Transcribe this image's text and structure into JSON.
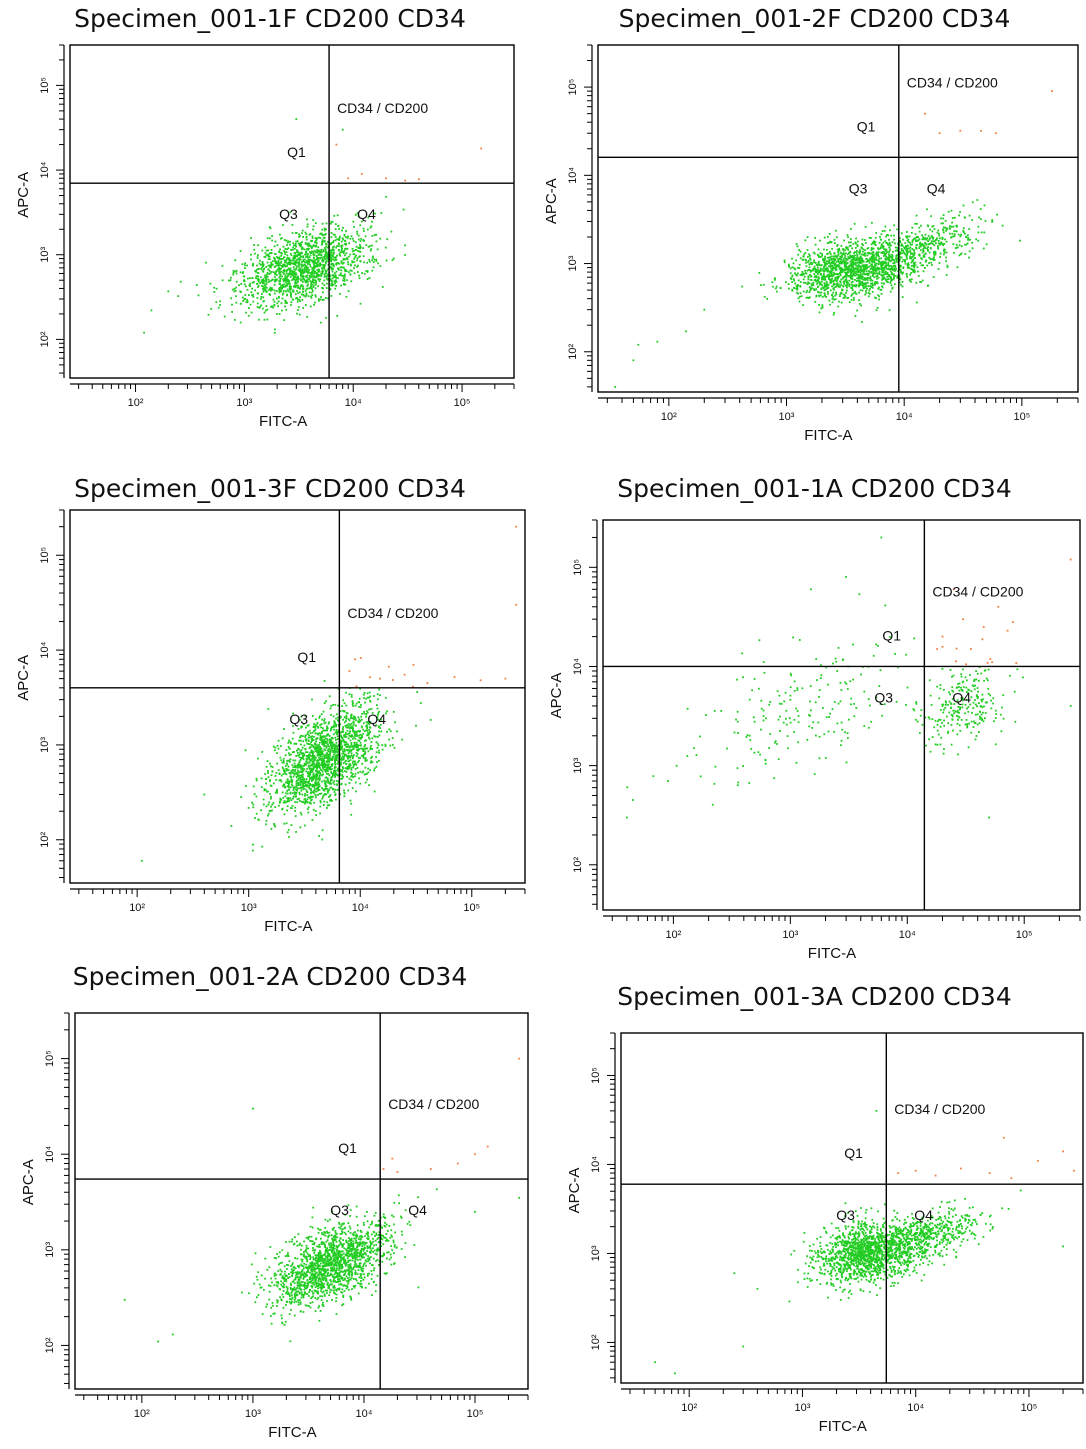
{
  "colors": {
    "population": "#22cc22",
    "double_positive": "#f08040",
    "gate": "#000000",
    "frame": "#000000"
  },
  "chart_data": [
    {
      "type": "scatter",
      "title": "Specimen_001-1F  CD200 CD34",
      "xlabel": "FITC-A",
      "ylabel": "APC-A",
      "xscale": "log",
      "yscale": "log",
      "x_ticks": [
        "10²",
        "10³",
        "10⁴",
        "10⁵"
      ],
      "y_ticks": [
        "10²",
        "10³",
        "10⁴",
        "10⁵"
      ],
      "xlim": [
        25,
        300000
      ],
      "ylim": [
        35,
        300000
      ],
      "gate": {
        "x": 6000,
        "y": 7000
      },
      "quadrant_labels": {
        "Q1": "Q1",
        "Q2": "CD34 / CD200",
        "Q3": "Q3",
        "Q4": "Q4"
      },
      "clusters": [
        {
          "cx": 3500,
          "cy": 700,
          "sx": 0.3,
          "sy": 0.24,
          "rho": 0.45,
          "n": 1500
        }
      ],
      "outliers": [
        [
          120,
          120
        ],
        [
          140,
          220
        ],
        [
          200,
          370
        ],
        [
          260,
          480
        ],
        [
          8000,
          30000
        ],
        [
          3000,
          40000
        ]
      ],
      "orange_points": [
        [
          9000,
          8000
        ],
        [
          12000,
          9000
        ],
        [
          20000,
          8000
        ],
        [
          40000,
          7800
        ],
        [
          7000,
          20000
        ],
        [
          150000,
          18000
        ],
        [
          30000,
          7500
        ]
      ]
    },
    {
      "type": "scatter",
      "title": "Specimen_001-2F  CD200 CD34",
      "xlabel": "FITC-A",
      "ylabel": "APC-A",
      "xscale": "log",
      "yscale": "log",
      "x_ticks": [
        "10²",
        "10³",
        "10⁴",
        "10⁵"
      ],
      "y_ticks": [
        "10²",
        "10³",
        "10⁴",
        "10⁵"
      ],
      "xlim": [
        25,
        300000
      ],
      "ylim": [
        35,
        300000
      ],
      "gate": {
        "x": 9000,
        "y": 16000
      },
      "quadrant_labels": {
        "Q1": "Q1",
        "Q2": "CD34 / CD200",
        "Q3": "Q3",
        "Q4": "Q4"
      },
      "clusters": [
        {
          "cx": 3500,
          "cy": 850,
          "sx": 0.26,
          "sy": 0.17,
          "rho": 0.25,
          "n": 1400
        },
        {
          "cx": 14000,
          "cy": 1500,
          "sx": 0.28,
          "sy": 0.2,
          "rho": 0.6,
          "n": 500
        }
      ],
      "outliers": [
        [
          35,
          40
        ],
        [
          50,
          80
        ],
        [
          80,
          130
        ],
        [
          140,
          170
        ],
        [
          200,
          300
        ],
        [
          420,
          550
        ],
        [
          55,
          120
        ]
      ],
      "orange_points": [
        [
          20000,
          30000
        ],
        [
          30000,
          32000
        ],
        [
          45000,
          32000
        ],
        [
          60000,
          30000
        ],
        [
          180000,
          90000
        ],
        [
          15000,
          50000
        ]
      ]
    },
    {
      "type": "scatter",
      "title": "Specimen_001-3F  CD200 CD34",
      "xlabel": "FITC-A",
      "ylabel": "APC-A",
      "xscale": "log",
      "yscale": "log",
      "x_ticks": [
        "10²",
        "10³",
        "10⁴",
        "10⁵"
      ],
      "y_ticks": [
        "10²",
        "10³",
        "10⁴",
        "10⁵"
      ],
      "xlim": [
        25,
        300000
      ],
      "ylim": [
        35,
        300000
      ],
      "gate": {
        "x": 6500,
        "y": 4000
      },
      "quadrant_labels": {
        "Q1": "Q1",
        "Q2": "CD34 / CD200",
        "Q3": "Q3",
        "Q4": "Q4"
      },
      "clusters": [
        {
          "cx": 4800,
          "cy": 700,
          "sx": 0.25,
          "sy": 0.28,
          "rho": 0.55,
          "n": 1800
        }
      ],
      "outliers": [
        [
          110,
          60
        ],
        [
          700,
          140
        ],
        [
          1100,
          220
        ],
        [
          400,
          300
        ],
        [
          1500,
          2400
        ]
      ],
      "orange_points": [
        [
          8000,
          6000
        ],
        [
          15000,
          5000
        ],
        [
          25000,
          5500
        ],
        [
          40000,
          4500
        ],
        [
          70000,
          5200
        ],
        [
          120000,
          4800
        ],
        [
          200000,
          5000
        ],
        [
          250000,
          30000
        ],
        [
          9000,
          8000
        ],
        [
          30000,
          7000
        ],
        [
          250000,
          200000
        ]
      ]
    },
    {
      "type": "scatter",
      "title": "Specimen_001-1A  CD200 CD34",
      "xlabel": "FITC-A",
      "ylabel": "APC-A",
      "xscale": "log",
      "yscale": "log",
      "x_ticks": [
        "10²",
        "10³",
        "10⁴",
        "10⁵"
      ],
      "y_ticks": [
        "10²",
        "10³",
        "10⁴",
        "10⁵"
      ],
      "xlim": [
        25,
        300000
      ],
      "ylim": [
        35,
        300000
      ],
      "gate": {
        "x": 14000,
        "y": 10000
      },
      "quadrant_labels": {
        "Q1": "Q1",
        "Q2": "CD34 / CD200",
        "Q3": "Q3",
        "Q4": "Q4"
      },
      "clusters": [
        {
          "cx": 30000,
          "cy": 4000,
          "sx": 0.18,
          "sy": 0.2,
          "rho": 0.3,
          "n": 250
        },
        {
          "cx": 1200,
          "cy": 4000,
          "sx": 0.5,
          "sy": 0.4,
          "rho": 0.55,
          "n": 200
        }
      ],
      "outliers": [
        [
          40,
          300
        ],
        [
          45,
          450
        ],
        [
          90,
          700
        ],
        [
          150,
          1500
        ],
        [
          6000,
          200000
        ],
        [
          3000,
          80000
        ],
        [
          1500,
          60000
        ],
        [
          250000,
          4000
        ],
        [
          50000,
          300
        ]
      ],
      "orange_points": [
        [
          20000,
          20000
        ],
        [
          30000,
          30000
        ],
        [
          45000,
          25000
        ],
        [
          60000,
          40000
        ],
        [
          25000,
          60000
        ],
        [
          80000,
          28000
        ],
        [
          250000,
          120000
        ],
        [
          18000,
          15000
        ],
        [
          35000,
          15000
        ]
      ]
    },
    {
      "type": "scatter",
      "title": "Specimen_001-2A  CD200 CD34",
      "xlabel": "FITC-A",
      "ylabel": "APC-A",
      "xscale": "log",
      "yscale": "log",
      "x_ticks": [
        "10²",
        "10³",
        "10⁴",
        "10⁵"
      ],
      "y_ticks": [
        "10²",
        "10³",
        "10⁴",
        "10⁵"
      ],
      "xlim": [
        25,
        300000
      ],
      "ylim": [
        35,
        300000
      ],
      "gate": {
        "x": 14000,
        "y": 5500
      },
      "quadrant_labels": {
        "Q1": "Q1",
        "Q2": "CD34 / CD200",
        "Q3": "Q3",
        "Q4": "Q4"
      },
      "clusters": [
        {
          "cx": 5000,
          "cy": 700,
          "sx": 0.27,
          "sy": 0.22,
          "rho": 0.55,
          "n": 1600
        }
      ],
      "outliers": [
        [
          70,
          300
        ],
        [
          140,
          110
        ],
        [
          190,
          130
        ],
        [
          1000,
          30000
        ],
        [
          250000,
          3500
        ],
        [
          100000,
          2500
        ]
      ],
      "orange_points": [
        [
          15000,
          7000
        ],
        [
          20000,
          6500
        ],
        [
          40000,
          7000
        ],
        [
          70000,
          8000
        ],
        [
          100000,
          10000
        ],
        [
          130000,
          12000
        ],
        [
          250000,
          100000
        ],
        [
          18000,
          9000
        ]
      ]
    },
    {
      "type": "scatter",
      "title": "Specimen_001-3A  CD200 CD34",
      "xlabel": "FITC-A",
      "ylabel": "APC-A",
      "xscale": "log",
      "yscale": "log",
      "x_ticks": [
        "10²",
        "10³",
        "10⁴",
        "10⁵"
      ],
      "y_ticks": [
        "10²",
        "10³",
        "10⁴",
        "10⁵"
      ],
      "xlim": [
        25,
        300000
      ],
      "ylim": [
        35,
        300000
      ],
      "gate": {
        "x": 5500,
        "y": 6000
      },
      "quadrant_labels": {
        "Q1": "Q1",
        "Q2": "CD34 / CD200",
        "Q3": "Q3",
        "Q4": "Q4"
      },
      "clusters": [
        {
          "cx": 3800,
          "cy": 1000,
          "sx": 0.22,
          "sy": 0.17,
          "rho": 0.2,
          "n": 1300
        },
        {
          "cx": 12000,
          "cy": 1600,
          "sx": 0.25,
          "sy": 0.15,
          "rho": 0.5,
          "n": 500
        }
      ],
      "outliers": [
        [
          50,
          60
        ],
        [
          75,
          45
        ],
        [
          120,
          30
        ],
        [
          300,
          90
        ],
        [
          400,
          400
        ],
        [
          250,
          600
        ],
        [
          4500,
          40000
        ],
        [
          200000,
          1200
        ]
      ],
      "orange_points": [
        [
          7000,
          8000
        ],
        [
          10000,
          8500
        ],
        [
          15000,
          7500
        ],
        [
          25000,
          9000
        ],
        [
          45000,
          8000
        ],
        [
          70000,
          7000
        ],
        [
          120000,
          11000
        ],
        [
          200000,
          14000
        ],
        [
          250000,
          8500
        ],
        [
          60000,
          20000
        ]
      ]
    }
  ]
}
